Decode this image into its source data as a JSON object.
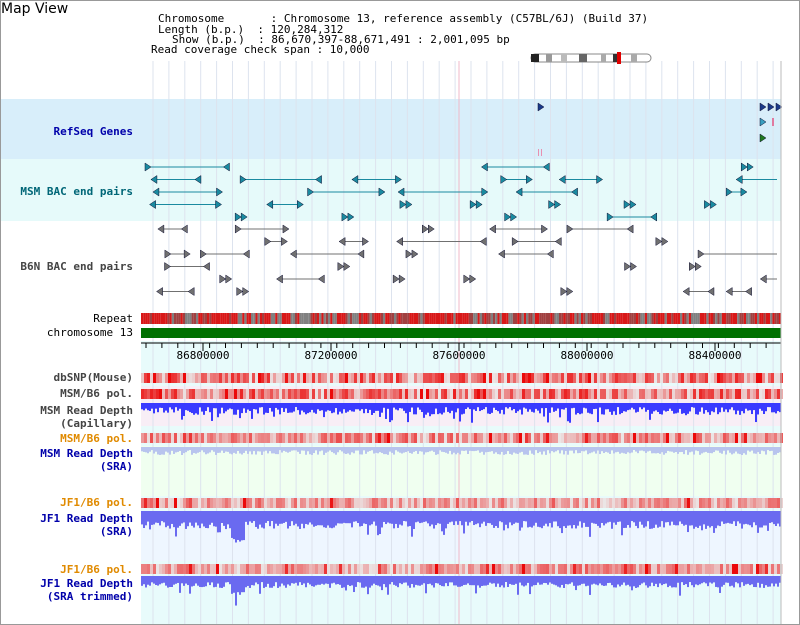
{
  "title": "Map View",
  "info": {
    "line1": "Chromosome       : Chromosome 13, reference assembly (C57BL/6J) (Build 37)",
    "line2": "Length (b.p.)  : 120,284,312",
    "line3": "Show (b.p.)  : 86,670,397-88,671,491 : 2,001,095 bp",
    "line4": "Read coverage check span : 10,000"
  },
  "tracks": {
    "refseq": "RefSeq Genes",
    "msm_bac": "MSM BAC end pairs",
    "b6n_bac": "B6N BAC end pairs",
    "repeat": "Repeat",
    "chromosome": "chromosome 13",
    "dbsnp": "dbSNP(Mouse)",
    "msm_b6_pol_1": "MSM/B6 pol.",
    "msm_depth_cap_1": "MSM Read Depth",
    "msm_depth_cap_2": "(Capillary)",
    "msm_b6_pol_2": "MSM/B6 pol.",
    "msm_depth_sra_1": "MSM Read Depth",
    "msm_depth_sra_2": "(SRA)",
    "jf1_b6_pol_1": "JF1/B6 pol.",
    "jf1_depth_sra_1": "JF1 Read Depth",
    "jf1_depth_sra_2": "(SRA)",
    "jf1_b6_pol_2": "JF1/B6 pol.",
    "jf1_depth_trim_1": "JF1 Read Depth",
    "jf1_depth_trim_2": "(SRA trimmed)"
  },
  "axis": {
    "ticks": [
      "86800000",
      "87200000",
      "87600000",
      "88000000",
      "88400000"
    ]
  },
  "colors": {
    "refseq_bg": "#d8eefa",
    "bac_bg": "#e6fafa",
    "depth_bg": "#f0fff0",
    "chromosome": "#007000",
    "depth_fill": "#3030e8",
    "pol_red": "#e00000"
  }
}
